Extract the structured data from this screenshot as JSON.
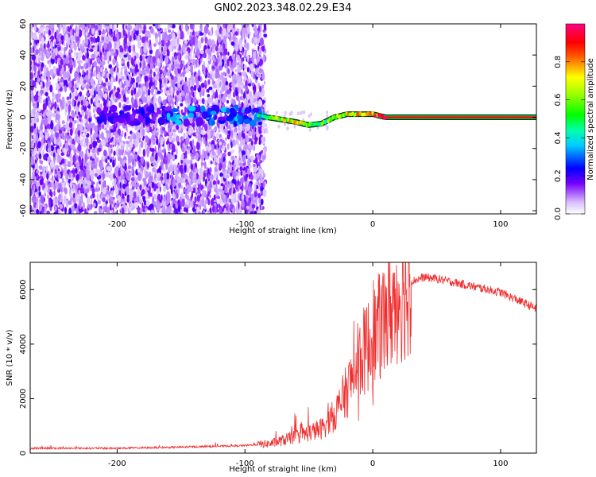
{
  "title": "GN02.2023.348.02.29.E34",
  "chart_data": [
    {
      "type": "heatmap",
      "xlabel": "Height of straight line (km)",
      "ylabel": "Frequency (Hz)",
      "xlim": [
        -268,
        128
      ],
      "ylim": [
        -62,
        60
      ],
      "x_ticks": [
        -200,
        -100,
        0,
        100
      ],
      "y_ticks": [
        -60,
        -40,
        -20,
        0,
        20,
        40,
        60
      ],
      "colorbar": {
        "label": "Normalized spectral amplitude",
        "range": [
          0,
          1
        ],
        "ticks": [
          0.0,
          0.2,
          0.4,
          0.6,
          0.8
        ],
        "colormap": [
          "#ffffff",
          "#6f00ff",
          "#0000ff",
          "#00ffff",
          "#00ff00",
          "#ffff00",
          "#ff0000",
          "#ff007f"
        ]
      },
      "noise_region_x": [
        -268,
        -84
      ],
      "signal_line": {
        "x": [
          -90,
          -75,
          -60,
          -50,
          -40,
          -30,
          -20,
          -10,
          0,
          10,
          128
        ],
        "y": [
          1,
          -1,
          -3,
          -5,
          -4,
          0,
          2,
          2,
          2,
          0,
          0
        ],
        "amplitude": [
          0.4,
          0.6,
          0.7,
          0.6,
          0.5,
          0.6,
          0.7,
          0.8,
          0.85,
          0.9,
          0.9
        ]
      },
      "grid": false
    },
    {
      "type": "line",
      "xlabel": "Height of straight line (km)",
      "ylabel": "SNR (10 * v/v)",
      "xlim": [
        -268,
        128
      ],
      "ylim": [
        0,
        7000
      ],
      "x_ticks": [
        -200,
        -100,
        0,
        100
      ],
      "y_ticks": [
        0,
        2000,
        4000,
        6000
      ],
      "line_color": "#ef3030",
      "envelope": {
        "x": [
          -268,
          -200,
          -150,
          -100,
          -80,
          -60,
          -40,
          -30,
          -20,
          -10,
          0,
          10,
          20,
          30,
          40,
          50,
          70,
          100,
          128
        ],
        "y": [
          180,
          180,
          220,
          280,
          350,
          600,
          900,
          1400,
          2300,
          3500,
          4200,
          5000,
          5800,
          6300,
          6450,
          6400,
          6200,
          5900,
          5300
        ]
      },
      "grid": false
    }
  ]
}
